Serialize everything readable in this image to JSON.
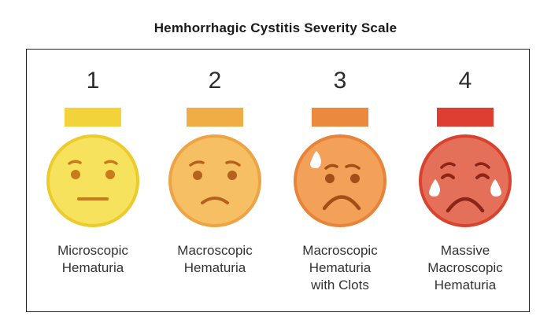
{
  "title": "Hemhorrhagic Cystitis Severity Scale",
  "grades": [
    {
      "number": "1",
      "label_lines": [
        "Microscopic",
        "Hematuria"
      ],
      "bar_color": "#f2d43a",
      "face_color": "#f7e25e",
      "face_rim": "#eccb2c",
      "face_icon": "neutral-face-icon"
    },
    {
      "number": "2",
      "label_lines": [
        "Macroscopic",
        "Hematuria"
      ],
      "bar_color": "#f0ad45",
      "face_color": "#f6bf63",
      "face_rim": "#eca445",
      "face_icon": "slight-frown-face-icon"
    },
    {
      "number": "3",
      "label_lines": [
        "Macroscopic",
        "Hematuria",
        "with Clots"
      ],
      "bar_color": "#eb8a3e",
      "face_color": "#f3a059",
      "face_rim": "#e8843a",
      "face_icon": "frown-sweat-face-icon"
    },
    {
      "number": "4",
      "label_lines": [
        "Massive",
        "Macroscopic",
        "Hematuria"
      ],
      "bar_color": "#de3d31",
      "face_color": "#e5705a",
      "face_rim": "#d8432f",
      "face_icon": "crying-face-icon"
    }
  ]
}
